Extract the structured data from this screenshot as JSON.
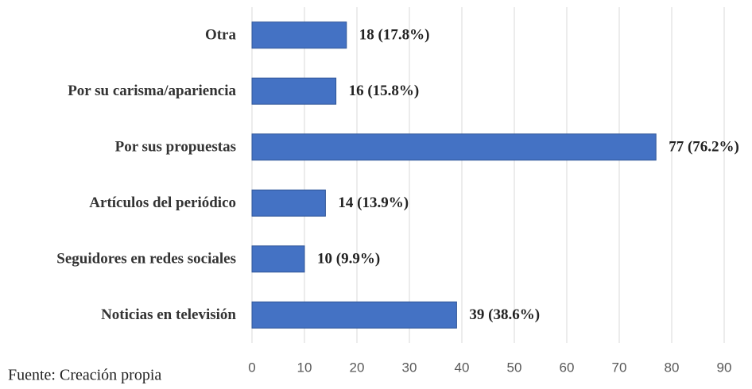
{
  "chart_data": {
    "type": "bar",
    "orientation": "horizontal",
    "categories": [
      "Otra",
      "Por su carisma/apariencia",
      "Por sus propuestas",
      "Artículos del periódico",
      "Seguidores en redes sociales",
      "Noticias en televisión"
    ],
    "values": [
      18,
      16,
      77,
      14,
      10,
      39
    ],
    "value_labels": [
      "18 (17.8%)",
      "16 (15.8%)",
      "77 (76.2%)",
      "14 (13.9%)",
      "10 (9.9%)",
      "39 (38.6%)"
    ],
    "color": "#4472c4",
    "xlim": [
      0,
      90
    ],
    "xticks": [
      0,
      10,
      20,
      30,
      40,
      50,
      60,
      70,
      80,
      90
    ],
    "grid": true,
    "source": "Fuente: Creación propia"
  }
}
